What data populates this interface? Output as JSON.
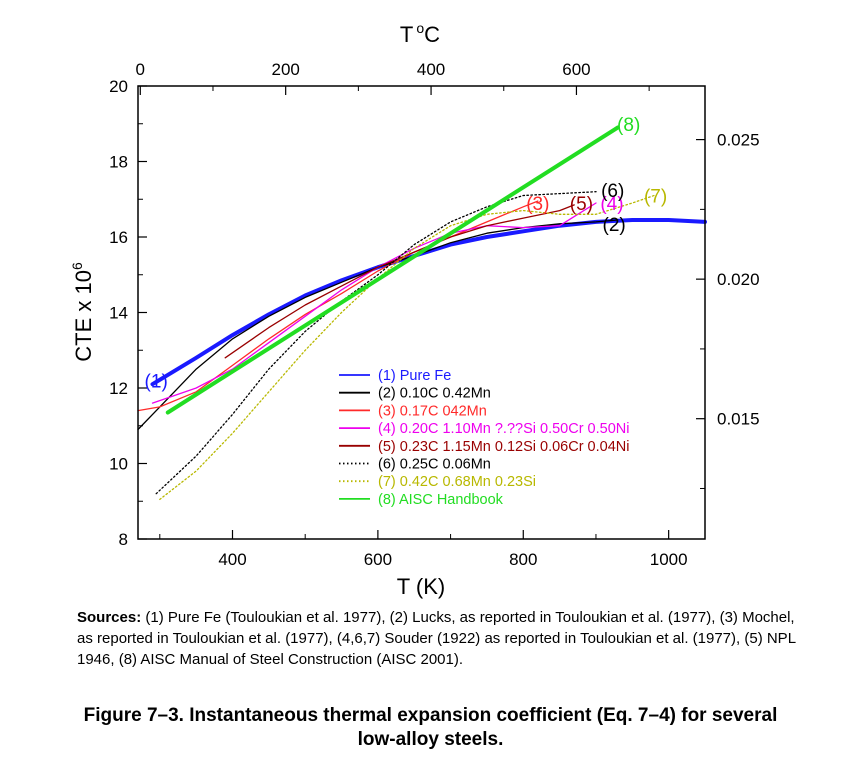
{
  "chart_data": {
    "type": "line",
    "xlabel": "T (K)",
    "ylabel_text": "CTE x 10",
    "ylabel_exponent": "6",
    "top_axis_label": "T",
    "top_axis_degree": "o",
    "top_axis_unit": "C",
    "xlim": [
      270,
      1050
    ],
    "ylim": [
      8,
      20
    ],
    "right_ylim": [
      0.01069,
      0.02692
    ],
    "x_ticks": [
      400,
      600,
      800,
      1000
    ],
    "x_tick_labels": [
      "400",
      "600",
      "800",
      "1000"
    ],
    "y_ticks": [
      8,
      10,
      12,
      14,
      16,
      18,
      20
    ],
    "y_tick_labels": [
      "8",
      "10",
      "12",
      "14",
      "16",
      "18",
      "20"
    ],
    "top_ticks_c": [
      0,
      200,
      400,
      600
    ],
    "top_tick_labels": [
      "0",
      "200",
      "400",
      "600"
    ],
    "right_ticks": [
      0.015,
      0.02,
      0.025
    ],
    "right_tick_labels": [
      "0.015",
      "0.020",
      "0.025"
    ],
    "legend": [
      {
        "label": "(1) Pure Fe",
        "color": "#1a1aff",
        "style": "solid"
      },
      {
        "label": "(2) 0.10C 0.42Mn",
        "color": "#000000",
        "style": "solid"
      },
      {
        "label": "(3) 0.17C 042Mn",
        "color": "#ff2a2a",
        "style": "solid"
      },
      {
        "label": "(4) 0.20C 1.10Mn ?.??Si 0.50Cr 0.50Ni",
        "color": "#ee00ee",
        "style": "solid"
      },
      {
        "label": "(5) 0.23C 1.15Mn 0.12Si 0.06Cr 0.04Ni",
        "color": "#990000",
        "style": "solid"
      },
      {
        "label": "(6) 0.25C 0.06Mn",
        "color": "#000000",
        "style": "dotted"
      },
      {
        "label": "(7) 0.42C 0.68Mn 0.23Si",
        "color": "#b8b800",
        "style": "dotted"
      },
      {
        "label": "(8) AISC Handbook",
        "color": "#22dd22",
        "style": "solid"
      }
    ],
    "series": [
      {
        "name": "(1) Pure Fe",
        "color": "#1a1aff",
        "style": "solid",
        "width": 4,
        "label": "(1)",
        "label_xy": [
          295,
          12.2
        ],
        "points": [
          [
            290,
            12.1
          ],
          [
            350,
            12.8
          ],
          [
            400,
            13.4
          ],
          [
            450,
            13.95
          ],
          [
            500,
            14.45
          ],
          [
            550,
            14.85
          ],
          [
            600,
            15.2
          ],
          [
            650,
            15.5
          ],
          [
            700,
            15.8
          ],
          [
            750,
            16.0
          ],
          [
            800,
            16.15
          ],
          [
            850,
            16.3
          ],
          [
            900,
            16.4
          ],
          [
            950,
            16.45
          ],
          [
            1000,
            16.45
          ],
          [
            1050,
            16.4
          ]
        ]
      },
      {
        "name": "(2) 0.10C 0.42Mn",
        "color": "#000000",
        "style": "solid",
        "width": 1.3,
        "label": "(2)",
        "label_xy": [
          925,
          16.35
        ],
        "points": [
          [
            270,
            10.9
          ],
          [
            300,
            11.5
          ],
          [
            350,
            12.5
          ],
          [
            400,
            13.3
          ],
          [
            450,
            13.9
          ],
          [
            500,
            14.4
          ],
          [
            550,
            14.8
          ],
          [
            600,
            15.2
          ],
          [
            650,
            15.5
          ],
          [
            700,
            15.85
          ],
          [
            750,
            16.1
          ],
          [
            800,
            16.25
          ],
          [
            850,
            16.35
          ],
          [
            900,
            16.4
          ],
          [
            930,
            16.45
          ]
        ]
      },
      {
        "name": "(3) 0.17C 042Mn",
        "color": "#ff2a2a",
        "style": "solid",
        "width": 1.3,
        "label": "(3)",
        "label_xy": [
          820,
          16.9
        ],
        "points": [
          [
            270,
            11.4
          ],
          [
            300,
            11.5
          ],
          [
            350,
            11.9
          ],
          [
            400,
            12.6
          ],
          [
            450,
            13.3
          ],
          [
            500,
            13.95
          ],
          [
            550,
            14.5
          ],
          [
            600,
            15.1
          ],
          [
            650,
            15.6
          ],
          [
            700,
            16.0
          ],
          [
            750,
            16.4
          ],
          [
            800,
            16.8
          ],
          [
            820,
            16.95
          ]
        ]
      },
      {
        "name": "(4) 0.20C 1.10Mn ?.??Si 0.50Cr 0.50Ni",
        "color": "#ee00ee",
        "style": "solid",
        "width": 1.3,
        "label": "(4)",
        "label_xy": [
          922,
          16.9
        ],
        "points": [
          [
            290,
            11.6
          ],
          [
            350,
            12.0
          ],
          [
            400,
            12.5
          ],
          [
            450,
            13.2
          ],
          [
            500,
            13.9
          ],
          [
            550,
            14.6
          ],
          [
            600,
            15.2
          ],
          [
            650,
            15.7
          ],
          [
            700,
            16.1
          ],
          [
            750,
            16.3
          ],
          [
            800,
            16.25
          ],
          [
            850,
            16.3
          ],
          [
            875,
            16.6
          ],
          [
            900,
            16.9
          ]
        ]
      },
      {
        "name": "(5) 0.23C 1.15Mn 0.12Si 0.06Cr 0.04Ni",
        "color": "#990000",
        "style": "solid",
        "width": 1.3,
        "label": "(5)",
        "label_xy": [
          880,
          16.9
        ],
        "points": [
          [
            390,
            12.8
          ],
          [
            450,
            13.6
          ],
          [
            500,
            14.2
          ],
          [
            550,
            14.7
          ],
          [
            600,
            15.2
          ],
          [
            650,
            15.6
          ],
          [
            700,
            16.0
          ],
          [
            750,
            16.3
          ],
          [
            800,
            16.5
          ],
          [
            850,
            16.7
          ],
          [
            870,
            16.85
          ]
        ]
      },
      {
        "name": "(6) 0.25C 0.06Mn",
        "color": "#000000",
        "style": "dotted",
        "width": 1.3,
        "label": "(6)",
        "label_xy": [
          923,
          17.25
        ],
        "points": [
          [
            295,
            9.2
          ],
          [
            350,
            10.2
          ],
          [
            400,
            11.3
          ],
          [
            450,
            12.5
          ],
          [
            500,
            13.5
          ],
          [
            550,
            14.3
          ],
          [
            600,
            15.0
          ],
          [
            650,
            15.8
          ],
          [
            700,
            16.4
          ],
          [
            750,
            16.8
          ],
          [
            800,
            17.1
          ],
          [
            850,
            17.15
          ],
          [
            900,
            17.2
          ]
        ]
      },
      {
        "name": "(7) 0.42C 0.68Mn 0.23Si",
        "color": "#b8b800",
        "style": "dotted",
        "width": 1.3,
        "label": "(7)",
        "label_xy": [
          982,
          17.1
        ],
        "points": [
          [
            300,
            9.05
          ],
          [
            350,
            9.8
          ],
          [
            400,
            10.8
          ],
          [
            450,
            11.9
          ],
          [
            500,
            13.0
          ],
          [
            550,
            14.0
          ],
          [
            600,
            14.9
          ],
          [
            650,
            15.7
          ],
          [
            700,
            16.3
          ],
          [
            750,
            16.6
          ],
          [
            800,
            16.7
          ],
          [
            850,
            16.6
          ],
          [
            900,
            16.6
          ],
          [
            950,
            16.9
          ],
          [
            980,
            17.1
          ]
        ]
      },
      {
        "name": "(8) AISC Handbook",
        "color": "#22dd22",
        "style": "solid",
        "width": 4,
        "label": "(8)",
        "label_xy": [
          945,
          19.0
        ],
        "points": [
          [
            311,
            11.35
          ],
          [
            930,
            18.9
          ]
        ]
      }
    ]
  },
  "sources": {
    "heading": "Sources:",
    "text": " (1) Pure Fe (Touloukian et al. 1977), (2) Lucks, as reported in Touloukian et al. (1977), (3) Mochel, as reported in Touloukian et al. (1977), (4,6,7) Souder (1922) as reported in Touloukian et al. (1977), (5) NPL 1946, (8) AISC Manual of Steel Construction (AISC 2001)."
  },
  "caption": {
    "line1": "Figure 7–3.  Instantaneous thermal expansion coefficient (Eq. 7–4) for several",
    "line2": "low-alloy steels."
  }
}
